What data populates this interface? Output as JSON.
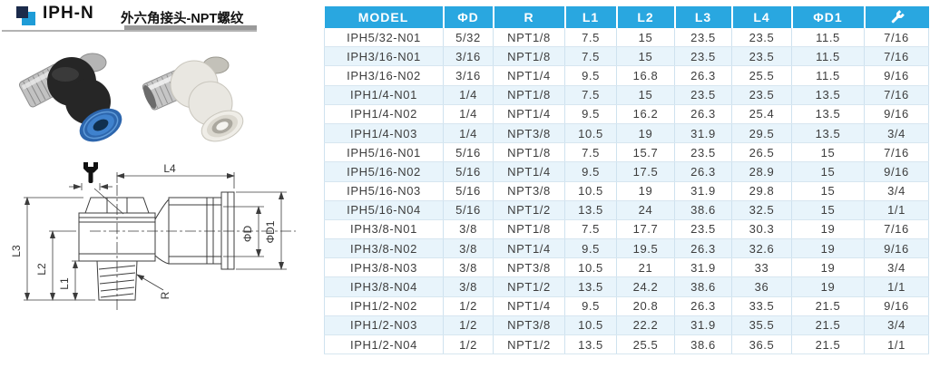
{
  "header": {
    "model_code": "IPH-N",
    "subtitle": "外六角接头-NPT螺纹"
  },
  "colors": {
    "accent_header": "#29A7E0",
    "row_alt": "#E8F4FB",
    "logo_dark": "#1B2B4B",
    "logo_cyan": "#1E9CD7",
    "fitting_blue_collar": "#2D66AD"
  },
  "diagram": {
    "labels": {
      "l1": "L1",
      "l2": "L2",
      "l3": "L3",
      "l4": "L4",
      "phi_d": "ΦD",
      "phi_d1": "ΦD1",
      "r": "R"
    },
    "icons": [
      "wrench-icon"
    ]
  },
  "table": {
    "columns": [
      "MODEL",
      "ΦD",
      "R",
      "L1",
      "L2",
      "L3",
      "L4",
      "ΦD1"
    ],
    "last_column_icon": "wrench-icon",
    "rows": [
      [
        "IPH5/32-N01",
        "5/32",
        "NPT1/8",
        "7.5",
        "15",
        "23.5",
        "23.5",
        "11.5",
        "7/16"
      ],
      [
        "IPH3/16-N01",
        "3/16",
        "NPT1/8",
        "7.5",
        "15",
        "23.5",
        "23.5",
        "11.5",
        "7/16"
      ],
      [
        "IPH3/16-N02",
        "3/16",
        "NPT1/4",
        "9.5",
        "16.8",
        "26.3",
        "25.5",
        "11.5",
        "9/16"
      ],
      [
        "IPH1/4-N01",
        "1/4",
        "NPT1/8",
        "7.5",
        "15",
        "23.5",
        "23.5",
        "13.5",
        "7/16"
      ],
      [
        "IPH1/4-N02",
        "1/4",
        "NPT1/4",
        "9.5",
        "16.2",
        "26.3",
        "25.4",
        "13.5",
        "9/16"
      ],
      [
        "IPH1/4-N03",
        "1/4",
        "NPT3/8",
        "10.5",
        "19",
        "31.9",
        "29.5",
        "13.5",
        "3/4"
      ],
      [
        "IPH5/16-N01",
        "5/16",
        "NPT1/8",
        "7.5",
        "15.7",
        "23.5",
        "26.5",
        "15",
        "7/16"
      ],
      [
        "IPH5/16-N02",
        "5/16",
        "NPT1/4",
        "9.5",
        "17.5",
        "26.3",
        "28.9",
        "15",
        "9/16"
      ],
      [
        "IPH5/16-N03",
        "5/16",
        "NPT3/8",
        "10.5",
        "19",
        "31.9",
        "29.8",
        "15",
        "3/4"
      ],
      [
        "IPH5/16-N04",
        "5/16",
        "NPT1/2",
        "13.5",
        "24",
        "38.6",
        "32.5",
        "15",
        "1/1"
      ],
      [
        "IPH3/8-N01",
        "3/8",
        "NPT1/8",
        "7.5",
        "17.7",
        "23.5",
        "30.3",
        "19",
        "7/16"
      ],
      [
        "IPH3/8-N02",
        "3/8",
        "NPT1/4",
        "9.5",
        "19.5",
        "26.3",
        "32.6",
        "19",
        "9/16"
      ],
      [
        "IPH3/8-N03",
        "3/8",
        "NPT3/8",
        "10.5",
        "21",
        "31.9",
        "33",
        "19",
        "3/4"
      ],
      [
        "IPH3/8-N04",
        "3/8",
        "NPT1/2",
        "13.5",
        "24.2",
        "38.6",
        "36",
        "19",
        "1/1"
      ],
      [
        "IPH1/2-N02",
        "1/2",
        "NPT1/4",
        "9.5",
        "20.8",
        "26.3",
        "33.5",
        "21.5",
        "9/16"
      ],
      [
        "IPH1/2-N03",
        "1/2",
        "NPT3/8",
        "10.5",
        "22.2",
        "31.9",
        "35.5",
        "21.5",
        "3/4"
      ],
      [
        "IPH1/2-N04",
        "1/2",
        "NPT1/2",
        "13.5",
        "25.5",
        "38.6",
        "36.5",
        "21.5",
        "1/1"
      ]
    ]
  }
}
